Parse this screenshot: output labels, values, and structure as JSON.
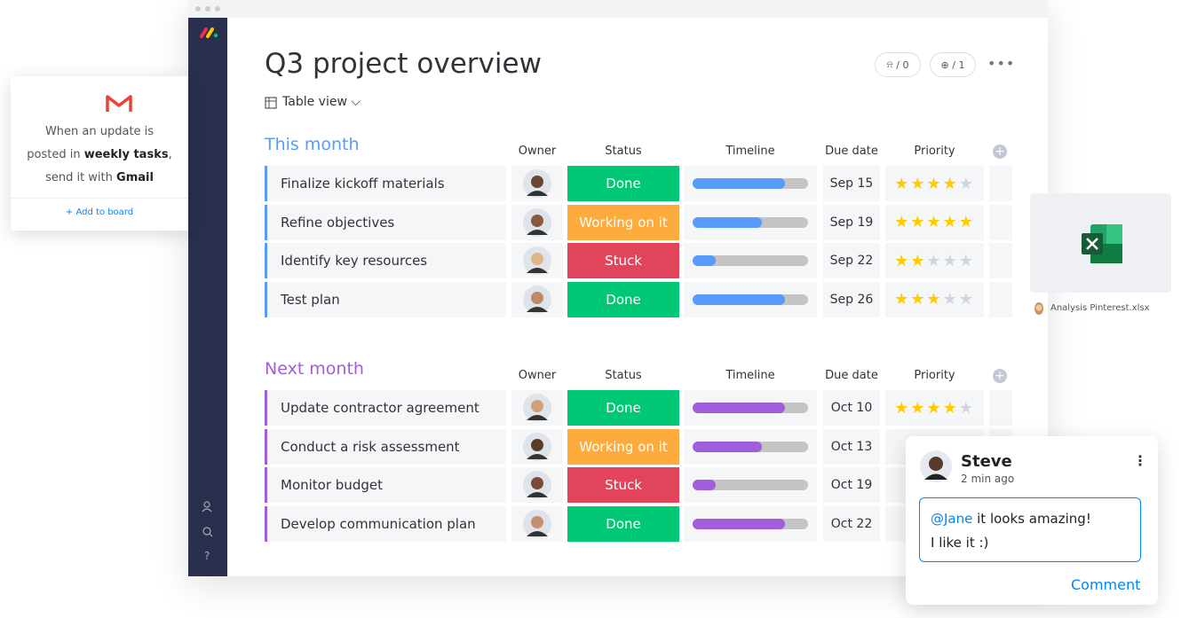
{
  "automation_card": {
    "line1": "When an update is",
    "line2_prefix": "posted in",
    "line2_bold": "weekly tasks",
    "line2_suffix": ",",
    "line3_prefix": "send it with",
    "line3_bold": "Gmail",
    "action": "+ Add to board"
  },
  "board": {
    "title": "Q3 project overview",
    "view": "Table view",
    "badges": [
      "/ 0",
      "/ 1"
    ],
    "groups": [
      {
        "name": "This month",
        "color": "#579bfc",
        "columns": [
          "Owner",
          "Status",
          "Timeline",
          "Due date",
          "Priority"
        ],
        "rows": [
          {
            "task": "Finalize kickoff materials",
            "status": "Done",
            "status_color": "#00c875",
            "timeline": 80,
            "due": "Sep 15",
            "priority": 4
          },
          {
            "task": "Refine objectives",
            "status": "Working on it",
            "status_color": "#fdab3d",
            "timeline": 60,
            "due": "Sep 19",
            "priority": 5
          },
          {
            "task": "Identify key resources",
            "status": "Stuck",
            "status_color": "#e2445c",
            "timeline": 20,
            "due": "Sep 22",
            "priority": 2
          },
          {
            "task": "Test plan",
            "status": "Done",
            "status_color": "#00c875",
            "timeline": 80,
            "due": "Sep 26",
            "priority": 3
          }
        ]
      },
      {
        "name": "Next month",
        "color": "#a25ddc",
        "columns": [
          "Owner",
          "Status",
          "Timeline",
          "Due date",
          "Priority"
        ],
        "rows": [
          {
            "task": "Update contractor agreement",
            "status": "Done",
            "status_color": "#00c875",
            "timeline": 80,
            "due": "Oct 10",
            "priority": 4
          },
          {
            "task": "Conduct a risk assessment",
            "status": "Working on it",
            "status_color": "#fdab3d",
            "timeline": 60,
            "due": "Oct 13",
            "priority": null
          },
          {
            "task": "Monitor budget",
            "status": "Stuck",
            "status_color": "#e2445c",
            "timeline": 20,
            "due": "Oct 19",
            "priority": null
          },
          {
            "task": "Develop communication plan",
            "status": "Done",
            "status_color": "#00c875",
            "timeline": 80,
            "due": "Oct 22",
            "priority": null
          }
        ]
      }
    ]
  },
  "attachment": {
    "file": "Analysis Pinterest.xlsx"
  },
  "comment": {
    "author": "Steve",
    "time": "2 min ago",
    "mention": "@Jane",
    "line1": "it looks amazing!",
    "line2": "I like it :)",
    "action": "Comment"
  }
}
